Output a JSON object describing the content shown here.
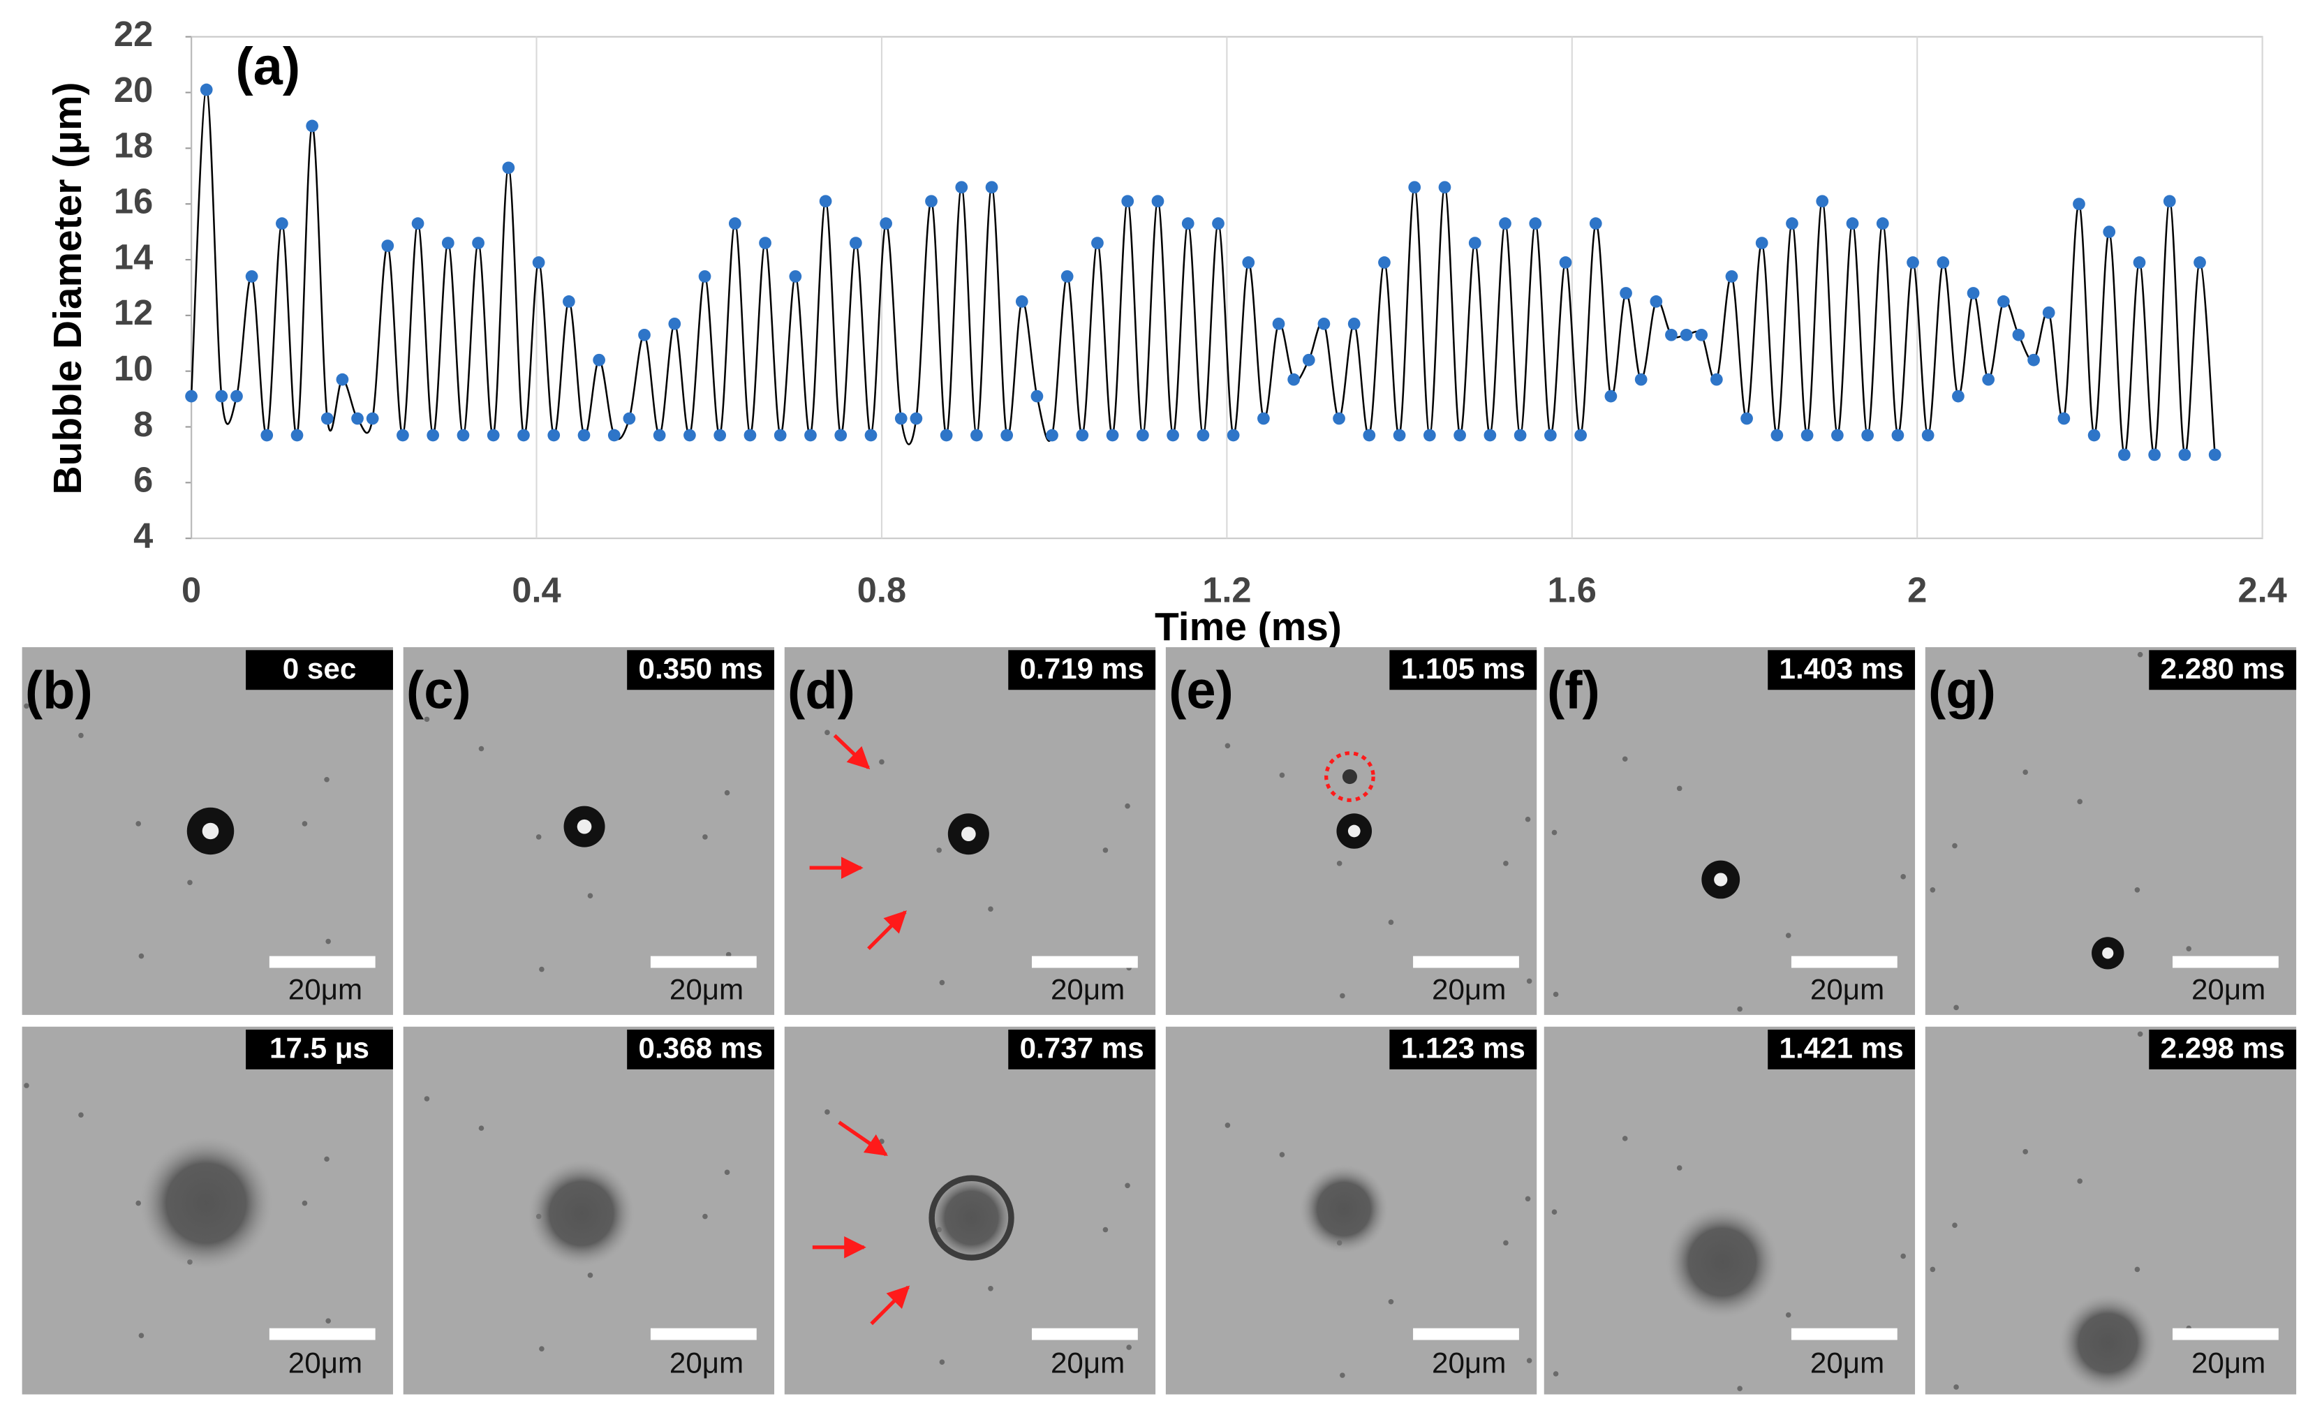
{
  "chart_data": {
    "type": "line",
    "annotation": "(a)",
    "x_label": "Time (ms)",
    "y_label": "Bubble Diameter (μm)",
    "x": [
      0,
      0.0175,
      0.035,
      0.0525,
      0.07,
      0.0875,
      0.105,
      0.1225,
      0.14,
      0.1575,
      0.175,
      0.1925,
      0.21,
      0.2275,
      0.245,
      0.2625,
      0.28,
      0.2975,
      0.315,
      0.3325,
      0.35,
      0.3675,
      0.385,
      0.4025,
      0.42,
      0.4375,
      0.455,
      0.4725,
      0.49,
      0.5075,
      0.525,
      0.5425,
      0.56,
      0.5775,
      0.595,
      0.6125,
      0.63,
      0.6475,
      0.665,
      0.6825,
      0.7,
      0.7175,
      0.735,
      0.7525,
      0.77,
      0.7875,
      0.805,
      0.8225,
      0.84,
      0.8575,
      0.875,
      0.8925,
      0.91,
      0.9275,
      0.945,
      0.9625,
      0.98,
      0.9975,
      1.015,
      1.0325,
      1.05,
      1.0675,
      1.085,
      1.1025,
      1.12,
      1.1375,
      1.155,
      1.1725,
      1.19,
      1.2075,
      1.225,
      1.2425,
      1.26,
      1.2775,
      1.295,
      1.3125,
      1.33,
      1.3475,
      1.365,
      1.3825,
      1.4,
      1.4175,
      1.435,
      1.4525,
      1.47,
      1.4875,
      1.505,
      1.5225,
      1.54,
      1.5575,
      1.575,
      1.5925,
      1.61,
      1.6275,
      1.645,
      1.6625,
      1.68,
      1.6975,
      1.715,
      1.7325,
      1.75,
      1.7675,
      1.785,
      1.8025,
      1.82,
      1.8375,
      1.855,
      1.8725,
      1.89,
      1.9075,
      1.925,
      1.9425,
      1.96,
      1.9775,
      1.995,
      2.0125,
      2.03,
      2.0475,
      2.065,
      2.0825,
      2.1,
      2.1175,
      2.135,
      2.1525,
      2.17,
      2.1875,
      2.205,
      2.2225,
      2.24,
      2.2575,
      2.275,
      2.2925,
      2.31,
      2.3275,
      2.345
    ],
    "series": [
      {
        "color": "#2e75c8",
        "line_color": "#000000",
        "values": [
          9.1,
          20.1,
          9.1,
          9.1,
          13.4,
          7.7,
          15.3,
          7.7,
          18.8,
          8.3,
          9.7,
          8.3,
          8.3,
          14.5,
          7.7,
          15.3,
          7.7,
          14.6,
          7.7,
          14.6,
          7.7,
          17.3,
          7.7,
          13.9,
          7.7,
          12.5,
          7.7,
          10.4,
          7.7,
          8.3,
          11.3,
          7.7,
          11.7,
          7.7,
          13.4,
          7.7,
          15.3,
          7.7,
          14.6,
          7.7,
          13.4,
          7.7,
          16.1,
          7.7,
          14.6,
          7.7,
          15.3,
          8.3,
          8.3,
          16.1,
          7.7,
          16.6,
          7.7,
          16.6,
          7.7,
          12.5,
          9.1,
          7.7,
          13.4,
          7.7,
          14.6,
          7.7,
          16.1,
          7.7,
          16.1,
          7.7,
          15.3,
          7.7,
          15.3,
          7.7,
          13.9,
          8.3,
          11.7,
          9.7,
          10.4,
          11.7,
          8.3,
          11.7,
          7.7,
          13.9,
          7.7,
          16.6,
          7.7,
          16.6,
          7.7,
          14.6,
          7.7,
          15.3,
          7.7,
          15.3,
          7.7,
          13.9,
          7.7,
          15.3,
          9.1,
          12.8,
          9.7,
          12.5,
          11.3,
          11.3,
          11.3,
          9.7,
          13.4,
          8.3,
          14.6,
          7.7,
          15.3,
          7.7,
          16.1,
          7.7,
          15.3,
          7.7,
          15.3,
          7.7,
          13.9,
          7.7,
          13.9,
          9.1,
          12.8,
          9.7,
          12.5,
          11.3,
          10.4,
          12.1,
          8.3,
          16.0,
          7.7,
          15.0,
          7.0,
          13.9,
          7.0,
          16.1,
          7.0,
          13.9,
          7.0
        ]
      }
    ],
    "xlim": [
      0,
      2.4
    ],
    "xticks": [
      0,
      0.4,
      0.8,
      1.2,
      1.6,
      2,
      2.4
    ],
    "ylim": [
      4,
      22
    ],
    "yticks": [
      4,
      6,
      8,
      10,
      12,
      14,
      16,
      18,
      20,
      22
    ],
    "grid": "x"
  },
  "scale_bar": "20μm",
  "panels": [
    {
      "label": "(b)",
      "times": [
        "0 sec",
        "17.5 μs"
      ]
    },
    {
      "label": "(c)",
      "times": [
        "0.350 ms",
        "0.368 ms"
      ]
    },
    {
      "label": "(d)",
      "times": [
        "0.719 ms",
        "0.737 ms"
      ]
    },
    {
      "label": "(e)",
      "times": [
        "1.105 ms",
        "1.123 ms"
      ]
    },
    {
      "label": "(f)",
      "times": [
        "1.403 ms",
        "1.421 ms"
      ]
    },
    {
      "label": "(g)",
      "times": [
        "2.280 ms",
        "2.298 ms"
      ]
    }
  ]
}
